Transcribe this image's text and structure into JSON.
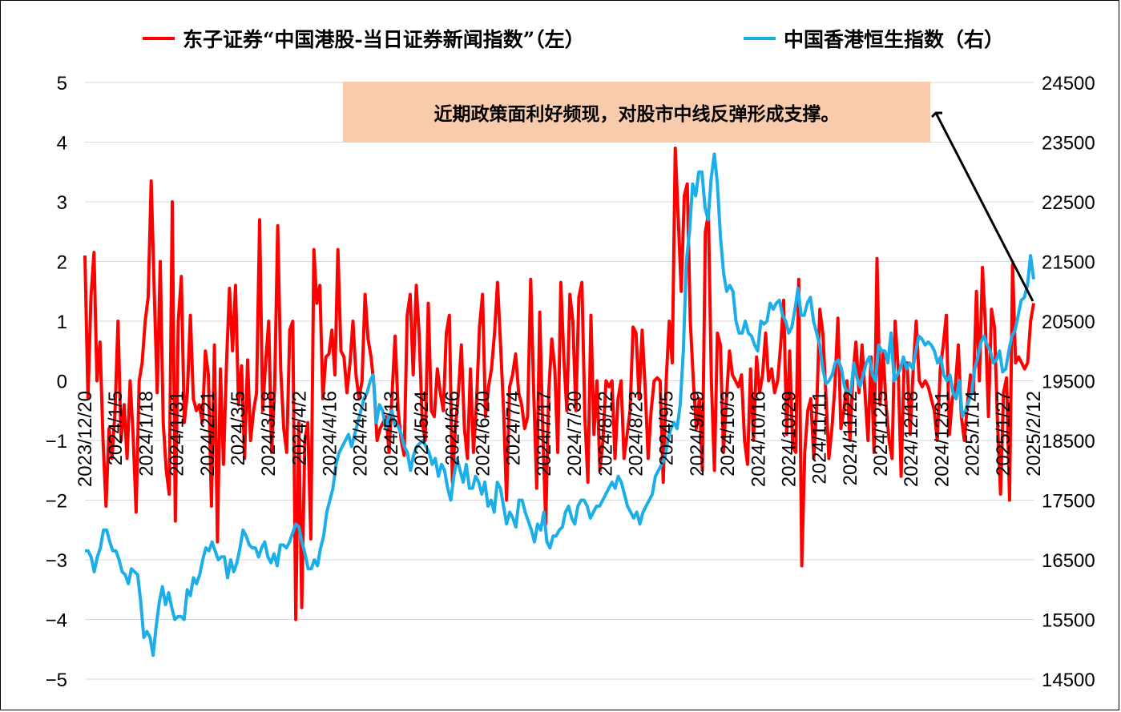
{
  "chart_data": {
    "type": "line",
    "legend_position": "top",
    "grid": true,
    "annotation": "近期政策面利好频现，对股市中线反弹形成支撑。",
    "x_tick_labels": [
      "2023/12/20",
      "2024/1/5",
      "2024/1/18",
      "2024/1/31",
      "2024/2/21",
      "2024/3/5",
      "2024/3/18",
      "2024/4/2",
      "2024/4/16",
      "2024/4/29",
      "2024/5/13",
      "2024/5/24",
      "2024/6/6",
      "2024/6/20",
      "2024/7/4",
      "2024/7/17",
      "2024/7/30",
      "2024/8/12",
      "2024/8/23",
      "2024/9/5",
      "2024/9/19",
      "2024/10/3",
      "2024/10/16",
      "2024/10/29",
      "2024/11/11",
      "2024/11/22",
      "2024/12/5",
      "2024/12/18",
      "2024/12/31",
      "2025/1/14",
      "2025/1/27",
      "2025/2/12"
    ],
    "y_left": {
      "lim": [
        -5,
        5
      ],
      "ticks": [
        "5",
        "4",
        "3",
        "2",
        "1",
        "0",
        "−1",
        "−2",
        "−3",
        "−4",
        "−5"
      ]
    },
    "y_right": {
      "lim": [
        14500,
        24500
      ],
      "ticks": [
        "24500",
        "23500",
        "22500",
        "21500",
        "20500",
        "19500",
        "18500",
        "17500",
        "16500",
        "15500",
        "14500"
      ]
    },
    "series": [
      {
        "name": "东子证券“中国港股-当日证券新闻指数”（左）",
        "axis": "left",
        "color": "#ff0000",
        "values": [
          2.1,
          -0.3,
          1.4,
          2.15,
          0,
          0.65,
          -1.0,
          -2.1,
          -0.8,
          -1.3,
          -0.5,
          1.0,
          -1.0,
          -0.4,
          -1.3,
          0.0,
          -0.9,
          -2.2,
          0.0,
          0.3,
          1.0,
          1.4,
          3.35,
          1.5,
          -0.2,
          2.0,
          -0.7,
          -1.5,
          -1.9,
          3.0,
          -2.35,
          1.0,
          1.75,
          -0.7,
          -0.2,
          1.1,
          -0.3,
          -0.5,
          -0.4,
          -0.7,
          0.5,
          0.1,
          -2.1,
          0.6,
          -2.7,
          0.2,
          -1.4,
          0.3,
          1.55,
          0.5,
          1.6,
          -0.4,
          0.25,
          -1.3,
          0.35,
          -1.0,
          -0.5,
          -0.2,
          2.7,
          -0.5,
          0.3,
          1.0,
          -1.2,
          -0.1,
          2.6,
          0.2,
          -0.8,
          -1.2,
          0.85,
          1.0,
          -4.0,
          -0.7,
          -3.8,
          -1.0,
          -0.7,
          -2.65,
          2.2,
          1.3,
          1.6,
          -0.3,
          0.4,
          0.45,
          0.85,
          0.1,
          2.2,
          0.5,
          0.4,
          -0.2,
          0.3,
          1.0,
          0.1,
          -0.3,
          0.0,
          1.45,
          0.7,
          0.4,
          -0.1,
          -1.0,
          -0.8,
          -0.7,
          -0.6,
          -1.2,
          -0.2,
          0.75,
          -0.5,
          -1.0,
          -1.25,
          1.1,
          1.45,
          0.1,
          1.6,
          0.75,
          -0.7,
          -1.0,
          1.3,
          -0.5,
          -0.6,
          0.2,
          -0.2,
          -0.5,
          0.8,
          1.1,
          -1.7,
          -0.8,
          -0.2,
          0.6,
          -0.8,
          -1.3,
          0.2,
          -1.2,
          -0.4,
          0.9,
          1.45,
          -0.6,
          -0.1,
          0.2,
          0.8,
          1.65,
          0.6,
          -0.5,
          -2.0,
          -0.1,
          0.1,
          0.45,
          -0.2,
          -0.4,
          -0.8,
          -0.6,
          1.7,
          -0.2,
          -1.8,
          1.15,
          -0.8,
          -2.4,
          -0.2,
          0.7,
          0.2,
          -1.2,
          1.65,
          0.4,
          -0.5,
          1.45,
          1.0,
          -0.5,
          1.4,
          1.65,
          -0.6,
          -1.7,
          1.1,
          -0.9,
          0.0,
          -1.5,
          -1.0,
          0.0,
          -0.1,
          0.0,
          -1.3,
          -0.3,
          0.0,
          -1.3,
          -0.9,
          -0.5,
          0.9,
          0.8,
          -0.3,
          0.85,
          -0.1,
          -1.3,
          -0.5,
          0.0,
          0.05,
          0.0,
          -1.7,
          0.0,
          1.0,
          0.3,
          3.9,
          2.7,
          1.5,
          3.1,
          3.3,
          1.0,
          0.0,
          -0.8,
          -0.3,
          -1.5,
          2.5,
          2.8,
          0.0,
          -1.5,
          0.8,
          0.6,
          -1.2,
          -0.3,
          0.5,
          0.1,
          0.0,
          -0.1,
          0.1,
          -1.0,
          -1.4,
          0.2,
          -1.0,
          0.4,
          -0.2,
          0.1,
          0.8,
          0.0,
          0.2,
          -0.2,
          0.0,
          0.6,
          1.35,
          -0.9,
          0.5,
          -1.1,
          -1.2,
          1.7,
          -3.1,
          -1.2,
          -0.5,
          -0.3,
          -1.3,
          -0.4,
          1.2,
          0.8,
          -0.2,
          -1.3,
          -0.8,
          -0.1,
          1.05,
          -0.8,
          -0.5,
          0.0,
          -1.0,
          0.1,
          0.65,
          -0.2,
          0.6,
          -0.2,
          -1.0,
          0.4,
          -1.2,
          2.05,
          -0.4,
          0.5,
          -0.4,
          -1.0,
          -1.3,
          1.0,
          0.2,
          -1.6,
          0.3,
          0.3,
          -0.9,
          0.2,
          1.0,
          0.0,
          -0.1,
          0.0,
          -0.1,
          -0.3,
          -0.5,
          -1.0,
          0.2,
          0.6,
          1.1,
          -0.9,
          -0.3,
          -0.1,
          0.6,
          -0.6,
          -1.0,
          -0.4,
          0.1,
          -0.2,
          1.5,
          0.0,
          1.9,
          0.9,
          -0.6,
          1.2,
          0.9,
          -0.7,
          -1.9,
          -0.2,
          0.05,
          -2.0,
          1.95,
          0.3,
          0.4,
          0.3,
          0.2,
          0.3,
          1.0,
          1.3
        ]
      },
      {
        "name": "中国香港恒生指数（右）",
        "axis": "right",
        "color": "#1caee8",
        "values": [
          16650,
          16650,
          16550,
          16300,
          16550,
          16700,
          17000,
          17000,
          16800,
          16650,
          16650,
          16500,
          16300,
          16250,
          16100,
          16350,
          16300,
          16250,
          15800,
          15200,
          15300,
          15200,
          14900,
          15400,
          15800,
          16050,
          15750,
          15950,
          15700,
          15500,
          15550,
          15550,
          15500,
          16000,
          15900,
          16200,
          16100,
          16250,
          16500,
          16700,
          16650,
          16800,
          16650,
          16500,
          16550,
          16550,
          16200,
          16500,
          16300,
          16450,
          16700,
          17000,
          16900,
          16750,
          16700,
          16700,
          16550,
          16700,
          16800,
          16550,
          16450,
          16600,
          16400,
          16750,
          16750,
          16700,
          16800,
          16950,
          17100,
          17050,
          16800,
          16600,
          16350,
          16350,
          16500,
          16400,
          16700,
          16900,
          17300,
          17500,
          17700,
          18100,
          18300,
          18400,
          18500,
          18600,
          18400,
          18600,
          18800,
          19000,
          19200,
          19300,
          19500,
          19600,
          18800,
          19100,
          19000,
          18700,
          18900,
          19000,
          18750,
          18750,
          18600,
          18400,
          18300,
          18000,
          18250,
          18400,
          18450,
          18500,
          18400,
          18300,
          18100,
          18200,
          17900,
          18100,
          18000,
          17700,
          17500,
          17900,
          18200,
          18000,
          17800,
          18100,
          17700,
          17700,
          17900,
          17800,
          17600,
          17800,
          17400,
          17500,
          17300,
          17800,
          17700,
          17400,
          17100,
          17300,
          17200,
          17050,
          17500,
          17500,
          17300,
          17150,
          17000,
          16800,
          17100,
          17000,
          17300,
          16800,
          16700,
          16900,
          16900,
          17000,
          17050,
          17300,
          17400,
          17200,
          17100,
          17400,
          17500,
          17500,
          17400,
          17200,
          17300,
          17400,
          17400,
          17500,
          17600,
          17700,
          17800,
          17700,
          17900,
          17800,
          17600,
          17400,
          17300,
          17200,
          17300,
          17100,
          17300,
          17400,
          17500,
          17600,
          17900,
          18000,
          18100,
          18200,
          18500,
          18700,
          18800,
          18700,
          19100,
          20000,
          21500,
          22000,
          22800,
          22600,
          23000,
          23000,
          22400,
          22200,
          22900,
          23300,
          22800,
          21900,
          21300,
          21000,
          21100,
          21000,
          20500,
          20300,
          20300,
          20500,
          20300,
          20250,
          20100,
          20000,
          20500,
          20450,
          20500,
          20800,
          20700,
          20800,
          20850,
          20600,
          20500,
          20300,
          20400,
          20700,
          21050,
          20600,
          20600,
          20800,
          20900,
          20500,
          20300,
          20100,
          19700,
          19450,
          19500,
          19600,
          19800,
          19850,
          19700,
          19400,
          19300,
          19300,
          19800,
          19550,
          19400,
          19600,
          19800,
          19900,
          19600,
          19500,
          20100,
          20000,
          20000,
          19800,
          20300,
          19500,
          19600,
          19700,
          19900,
          19700,
          19800,
          19700,
          20000,
          20250,
          20200,
          20100,
          20150,
          20100,
          20000,
          19800,
          19900,
          19600,
          19500,
          19600,
          19300,
          19200,
          19500,
          18900,
          19000,
          19150,
          19300,
          19700,
          19900,
          20150,
          20250,
          20100,
          20000,
          19800,
          19850,
          20000,
          19650,
          19700,
          20000,
          20250,
          20350,
          20600,
          20850,
          20900,
          21100,
          21600,
          21200
        ]
      }
    ]
  }
}
